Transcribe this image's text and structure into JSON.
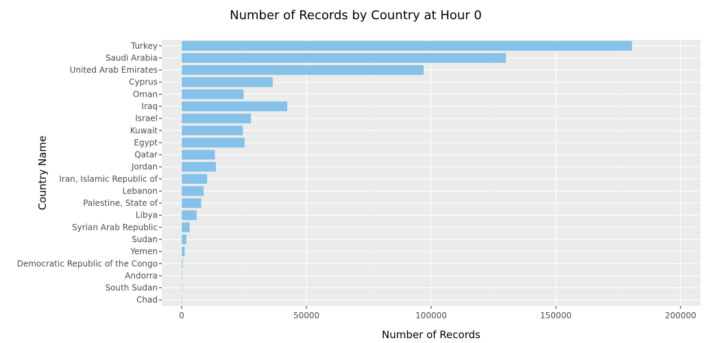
{
  "chart_data": {
    "type": "bar",
    "orientation": "horizontal",
    "title": "Number of Records by Country at Hour 0",
    "xlabel": "Number of Records",
    "ylabel": "Country Name",
    "categories": [
      "Turkey",
      "Saudi Arabia",
      "United Arab Emirates",
      "Cyprus",
      "Oman",
      "Iraq",
      "Israel",
      "Kuwait",
      "Egypt",
      "Qatar",
      "Jordan",
      "Iran, Islamic Republic of",
      "Lebanon",
      "Palestine, State of",
      "Libya",
      "Syrian Arab Republic",
      "Sudan",
      "Yemen",
      "Democratic Republic of the Congo",
      "Andorra",
      "South Sudan",
      "Chad"
    ],
    "values": [
      180500,
      130000,
      97000,
      36500,
      24800,
      42300,
      27800,
      24500,
      25200,
      13300,
      13700,
      10200,
      8800,
      7800,
      6000,
      3200,
      1900,
      1200,
      350,
      250,
      60,
      40
    ],
    "xlim": [
      -8000,
      208000
    ],
    "xticks": [
      0,
      50000,
      100000,
      150000,
      200000
    ],
    "xtick_labels": [
      "0",
      "50000",
      "100000",
      "150000",
      "200000"
    ],
    "grid": true,
    "legend": "none",
    "colors": {
      "bar": "#85C1E9",
      "panel": "#EBEBEB",
      "grid_major": "#FFFFFF",
      "grid_minor": "#F2F2F2"
    }
  }
}
